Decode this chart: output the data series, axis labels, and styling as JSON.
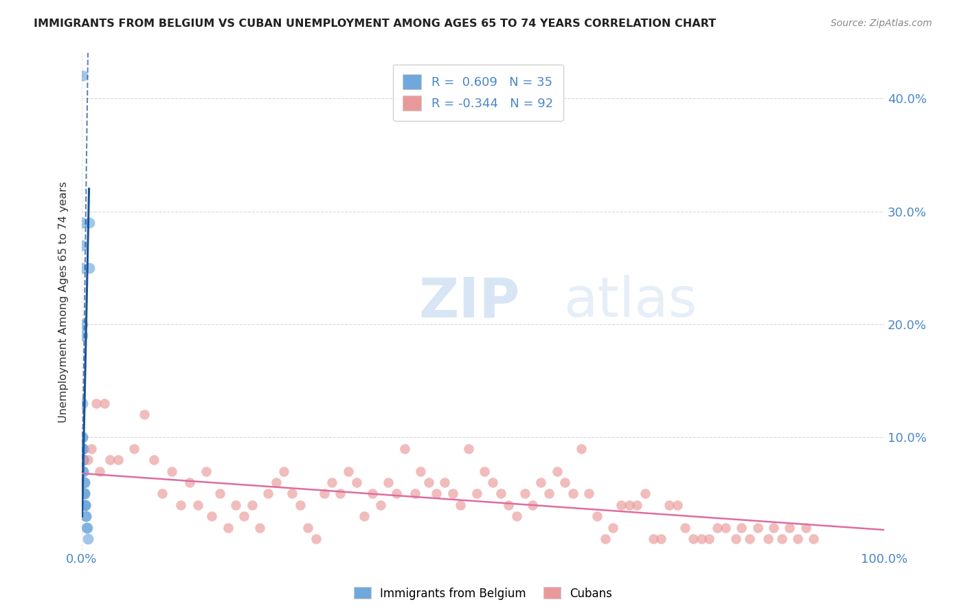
{
  "title": "IMMIGRANTS FROM BELGIUM VS CUBAN UNEMPLOYMENT AMONG AGES 65 TO 74 YEARS CORRELATION CHART",
  "source": "Source: ZipAtlas.com",
  "ylabel": "Unemployment Among Ages 65 to 74 years",
  "legend_label1": "Immigrants from Belgium",
  "legend_label2": "Cubans",
  "r1": 0.609,
  "n1": 35,
  "r2": -0.344,
  "n2": 92,
  "blue_color": "#6fa8dc",
  "pink_color": "#ea9999",
  "blue_line_color": "#1a5296",
  "pink_line_color": "#e06c9f",
  "axis_color": "#4a86c8",
  "background_color": "#ffffff",
  "grid_color": "#d0d0d0",
  "blue_x": [
    0.001,
    0.001,
    0.001,
    0.001,
    0.001,
    0.001,
    0.001,
    0.001,
    0.001,
    0.001,
    0.002,
    0.002,
    0.002,
    0.002,
    0.002,
    0.002,
    0.002,
    0.002,
    0.002,
    0.003,
    0.003,
    0.003,
    0.003,
    0.003,
    0.004,
    0.004,
    0.004,
    0.005,
    0.005,
    0.006,
    0.007,
    0.008,
    0.009,
    0.009,
    0.001
  ],
  "blue_y": [
    0.42,
    0.29,
    0.27,
    0.25,
    0.2,
    0.19,
    0.13,
    0.1,
    0.1,
    0.09,
    0.09,
    0.09,
    0.08,
    0.08,
    0.08,
    0.08,
    0.08,
    0.07,
    0.07,
    0.06,
    0.06,
    0.05,
    0.05,
    0.05,
    0.04,
    0.04,
    0.04,
    0.03,
    0.03,
    0.02,
    0.02,
    0.01,
    0.29,
    0.25,
    0.04
  ],
  "pink_x": [
    0.018,
    0.035,
    0.012,
    0.008,
    0.022,
    0.028,
    0.045,
    0.065,
    0.078,
    0.09,
    0.1,
    0.112,
    0.123,
    0.134,
    0.145,
    0.155,
    0.162,
    0.172,
    0.182,
    0.192,
    0.202,
    0.212,
    0.222,
    0.232,
    0.242,
    0.252,
    0.262,
    0.272,
    0.282,
    0.292,
    0.302,
    0.312,
    0.322,
    0.332,
    0.342,
    0.352,
    0.362,
    0.372,
    0.382,
    0.392,
    0.402,
    0.415,
    0.422,
    0.432,
    0.442,
    0.452,
    0.462,
    0.472,
    0.482,
    0.492,
    0.502,
    0.512,
    0.522,
    0.532,
    0.542,
    0.552,
    0.562,
    0.572,
    0.582,
    0.592,
    0.602,
    0.612,
    0.622,
    0.632,
    0.642,
    0.652,
    0.662,
    0.672,
    0.682,
    0.692,
    0.702,
    0.712,
    0.722,
    0.732,
    0.742,
    0.752,
    0.762,
    0.772,
    0.782,
    0.792,
    0.802,
    0.815,
    0.822,
    0.832,
    0.842,
    0.855,
    0.862,
    0.872,
    0.882,
    0.892,
    0.902,
    0.912
  ],
  "pink_y": [
    0.13,
    0.08,
    0.09,
    0.08,
    0.07,
    0.13,
    0.08,
    0.09,
    0.12,
    0.08,
    0.05,
    0.07,
    0.04,
    0.06,
    0.04,
    0.07,
    0.03,
    0.05,
    0.02,
    0.04,
    0.03,
    0.04,
    0.02,
    0.05,
    0.06,
    0.07,
    0.05,
    0.04,
    0.02,
    0.01,
    0.05,
    0.06,
    0.05,
    0.07,
    0.06,
    0.03,
    0.05,
    0.04,
    0.06,
    0.05,
    0.09,
    0.05,
    0.07,
    0.06,
    0.05,
    0.06,
    0.05,
    0.04,
    0.09,
    0.05,
    0.07,
    0.06,
    0.05,
    0.04,
    0.03,
    0.05,
    0.04,
    0.06,
    0.05,
    0.07,
    0.06,
    0.05,
    0.09,
    0.05,
    0.03,
    0.01,
    0.02,
    0.04,
    0.04,
    0.04,
    0.05,
    0.01,
    0.01,
    0.04,
    0.04,
    0.02,
    0.01,
    0.01,
    0.01,
    0.02,
    0.02,
    0.01,
    0.02,
    0.01,
    0.02,
    0.01,
    0.02,
    0.01,
    0.02,
    0.01,
    0.02,
    0.01
  ],
  "ylim": [
    0,
    0.44
  ],
  "xlim": [
    0,
    1.0
  ],
  "yticks": [
    0.1,
    0.2,
    0.3,
    0.4
  ],
  "ytick_labels": [
    "10.0%",
    "20.0%",
    "30.0%",
    "40.0%"
  ],
  "xticks": [
    0.0,
    1.0
  ],
  "xtick_labels": [
    "0.0%",
    "100.0%"
  ]
}
